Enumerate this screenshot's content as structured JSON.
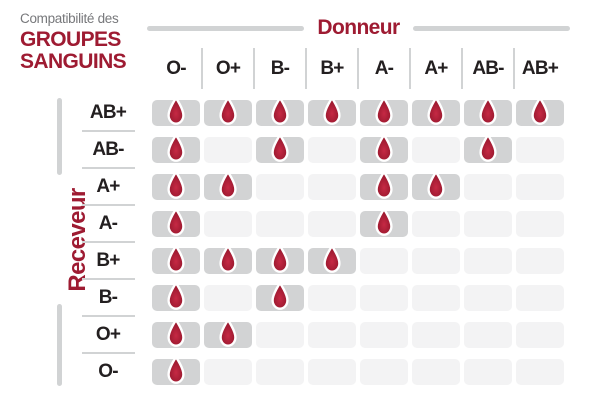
{
  "title": {
    "line1": "Compatibilité des",
    "line2": "GROUPES",
    "line3": "SANGUINS"
  },
  "chart_data": {
    "type": "table",
    "title": "Compatibilité des GROUPES SANGUINS",
    "columns_axis_label": "Donneur",
    "rows_axis_label": "Receveur",
    "donor_types": [
      "O-",
      "O+",
      "B-",
      "B+",
      "A-",
      "A+",
      "AB-",
      "AB+"
    ],
    "receiver_types": [
      "AB+",
      "AB-",
      "A+",
      "A-",
      "B+",
      "B-",
      "O+",
      "O-"
    ],
    "compatibility": [
      [
        1,
        1,
        1,
        1,
        1,
        1,
        1,
        1
      ],
      [
        1,
        0,
        1,
        0,
        1,
        0,
        1,
        0
      ],
      [
        1,
        1,
        0,
        0,
        1,
        1,
        0,
        0
      ],
      [
        1,
        0,
        0,
        0,
        1,
        0,
        0,
        0
      ],
      [
        1,
        1,
        1,
        1,
        0,
        0,
        0,
        0
      ],
      [
        1,
        0,
        1,
        0,
        0,
        0,
        0,
        0
      ],
      [
        1,
        1,
        0,
        0,
        0,
        0,
        0,
        0
      ],
      [
        1,
        0,
        0,
        0,
        0,
        0,
        0,
        0
      ]
    ],
    "marker": "blood-drop-icon",
    "legend_note": "drop = compatible donor for receiver"
  },
  "colors": {
    "accent-red": "#9e1b32",
    "label-dark": "#231f20",
    "muted-gray": "#77787b",
    "line-gray": "#d1d3d4",
    "cell-filled": "#d2d3d4",
    "cell-empty": "#f3f3f4",
    "bg": "#ffffff",
    "drop-center": "#c62944",
    "drop-edge": "#951629",
    "drop-outline": "#ffffff"
  }
}
